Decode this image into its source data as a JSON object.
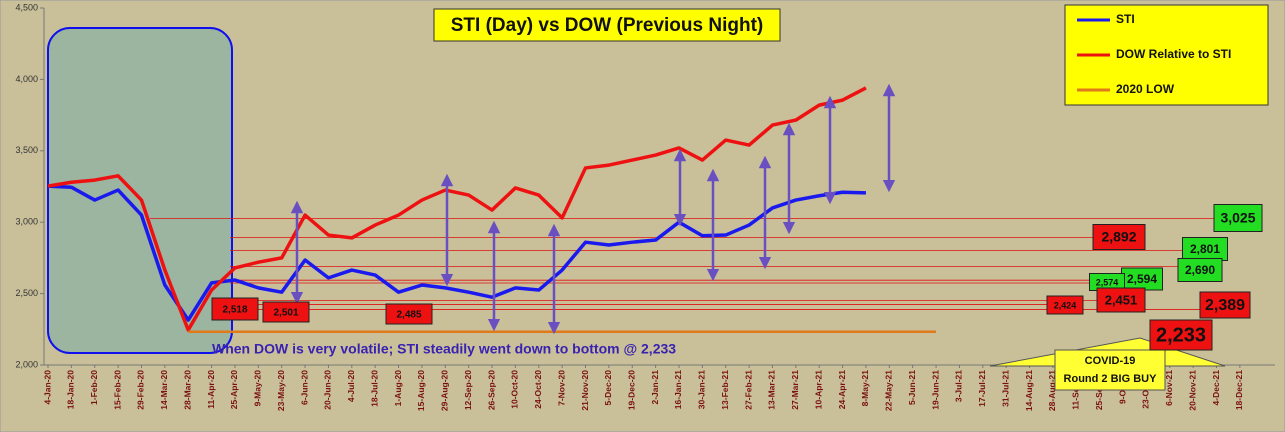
{
  "chart_data": {
    "type": "line",
    "title": "STI (Day) vs DOW (Previous Night)",
    "categories": [
      "4-Jan-20",
      "18-Jan-20",
      "1-Feb-20",
      "15-Feb-20",
      "29-Feb-20",
      "14-Mar-20",
      "28-Mar-20",
      "11-Apr-20",
      "25-Apr-20",
      "9-May-20",
      "23-May-20",
      "6-Jun-20",
      "20-Jun-20",
      "4-Jul-20",
      "18-Jul-20",
      "1-Aug-20",
      "15-Aug-20",
      "29-Aug-20",
      "12-Sep-20",
      "26-Sep-20",
      "10-Oct-20",
      "24-Oct-20",
      "7-Nov-20",
      "21-Nov-20",
      "5-Dec-20",
      "19-Dec-20",
      "2-Jan-21",
      "16-Jan-21",
      "30-Jan-21",
      "13-Feb-21",
      "27-Feb-21",
      "13-Mar-21",
      "27-Mar-21",
      "10-Apr-21",
      "24-Apr-21",
      "8-May-21",
      "22-May-21",
      "5-Jun-21",
      "19-Jun-21",
      "3-Jul-21",
      "17-Jul-21",
      "31-Jul-21",
      "14-Aug-21",
      "28-Aug-21",
      "11-Sep-21",
      "25-Sep-21",
      "9-Oct-21",
      "23-Oct-21",
      "6-Nov-21",
      "20-Nov-21",
      "4-Dec-21",
      "18-Dec-21"
    ],
    "series": [
      {
        "name": "STI",
        "color": "#1a1aee",
        "values": [
          3253,
          3245,
          3155,
          3225,
          3050,
          2560,
          2315,
          2575,
          2595,
          2540,
          2510,
          2735,
          2610,
          2665,
          2630,
          2510,
          2560,
          2540,
          2510,
          2475,
          2540,
          2525,
          2665,
          2860,
          2840,
          2860,
          2875,
          3000,
          2905,
          2910,
          2980,
          3100,
          3155,
          3185,
          3210,
          3205,
          null,
          null,
          null,
          null,
          null,
          null,
          null,
          null,
          null,
          null,
          null,
          null,
          null,
          null,
          null,
          null
        ]
      },
      {
        "name": "DOW Relative to STI",
        "color": "#ee1111",
        "values": [
          3253,
          3280,
          3295,
          3325,
          3155,
          2665,
          2245,
          2525,
          2680,
          2720,
          2750,
          3050,
          2910,
          2890,
          2980,
          3050,
          3155,
          3225,
          3190,
          3085,
          3240,
          3190,
          3030,
          3380,
          3400,
          3435,
          3470,
          3520,
          3435,
          3575,
          3540,
          3680,
          3715,
          3820,
          3855,
          3940,
          null,
          null,
          null,
          null,
          null,
          null,
          null,
          null,
          null,
          null,
          null,
          null,
          null,
          null,
          null,
          null
        ]
      },
      {
        "name": "2020 LOW",
        "color": "#e07a1a",
        "values": [
          null,
          null,
          null,
          null,
          null,
          null,
          2233,
          2233,
          2233,
          2233,
          2233,
          2233,
          2233,
          2233,
          2233,
          2233,
          2233,
          2233,
          2233,
          2233,
          2233,
          2233,
          2233,
          2233,
          2233,
          2233,
          2233,
          2233,
          2233,
          2233,
          2233,
          2233,
          2233,
          2233,
          2233,
          2233,
          2233,
          2233,
          2233,
          null,
          null,
          null,
          null,
          null,
          null,
          null,
          null,
          null,
          null,
          null,
          null,
          null
        ]
      }
    ],
    "ylim": [
      2000,
      4500
    ],
    "yticks": [
      {
        "value": 2000,
        "label": "2,000"
      },
      {
        "value": 2500,
        "label": "2,500"
      },
      {
        "value": 3000,
        "label": "3,000"
      },
      {
        "value": 3500,
        "label": "3,500"
      },
      {
        "value": 4000,
        "label": "4,000"
      },
      {
        "value": 4500,
        "label": "4,500"
      }
    ],
    "legend": "top-right",
    "levels": [
      {
        "value": 3025,
        "label": "3,025",
        "color": "#22dd22"
      },
      {
        "value": 2892,
        "label": "2,892",
        "color": "#ee1111"
      },
      {
        "value": 2801,
        "label": "2,801",
        "color": "#22dd22"
      },
      {
        "value": 2690,
        "label": "2,690",
        "color": "#22dd22"
      },
      {
        "value": 2594,
        "label": "2,594",
        "color": "#22dd22"
      },
      {
        "value": 2574,
        "label": "2,574",
        "color": "#22dd22"
      },
      {
        "value": 2451,
        "label": "2,451",
        "color": "#ee1111"
      },
      {
        "value": 2424,
        "label": "2,424",
        "color": "#ee1111"
      },
      {
        "value": 2389,
        "label": "2,389",
        "color": "#ee1111"
      },
      {
        "value": 2233,
        "label": "2,233",
        "color": "#ee1111"
      },
      {
        "value": 2518,
        "label": "2,518",
        "color": "#ee1111"
      },
      {
        "value": 2501,
        "label": "2,501",
        "color": "#ee1111"
      },
      {
        "value": 2485,
        "label": "2,485",
        "color": "#ee1111"
      }
    ],
    "annotation": "When DOW is very volatile; STI steadily went down to bottom @ 2,233",
    "callout": [
      "COVID-19",
      "Round 2 BIG BUY"
    ]
  }
}
